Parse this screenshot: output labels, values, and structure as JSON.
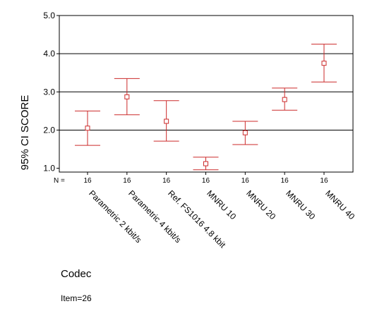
{
  "chart_data": {
    "type": "errorbar",
    "ylabel": "95% CI SCORE",
    "xlabel": "Codec",
    "ylim": [
      0.9,
      5.0
    ],
    "yticks": [
      "1.0",
      "2.0",
      "3.0",
      "4.0",
      "5.0"
    ],
    "gridlines": [
      2.0,
      3.0,
      4.0
    ],
    "n_label": "N =",
    "categories": [
      "Parametric 2 kbit/s",
      "Parametric 4 kbit/s",
      "Ref. FS1016 4.8 kbit",
      "MNRU 10",
      "MNRU 20",
      "MNRU 30",
      "MNRU 40"
    ],
    "n": [
      "16",
      "16",
      "16",
      "16",
      "16",
      "16",
      "16"
    ],
    "series": [
      {
        "mean": [
          2.05,
          2.87,
          2.23,
          1.12,
          1.93,
          2.8,
          3.75
        ],
        "lower": [
          1.6,
          2.4,
          1.71,
          0.96,
          1.62,
          2.52,
          3.26
        ],
        "upper": [
          2.5,
          3.35,
          2.77,
          1.29,
          2.23,
          3.1,
          4.25
        ]
      }
    ],
    "color": "#cc2a2a"
  },
  "footnote": "Item=26"
}
